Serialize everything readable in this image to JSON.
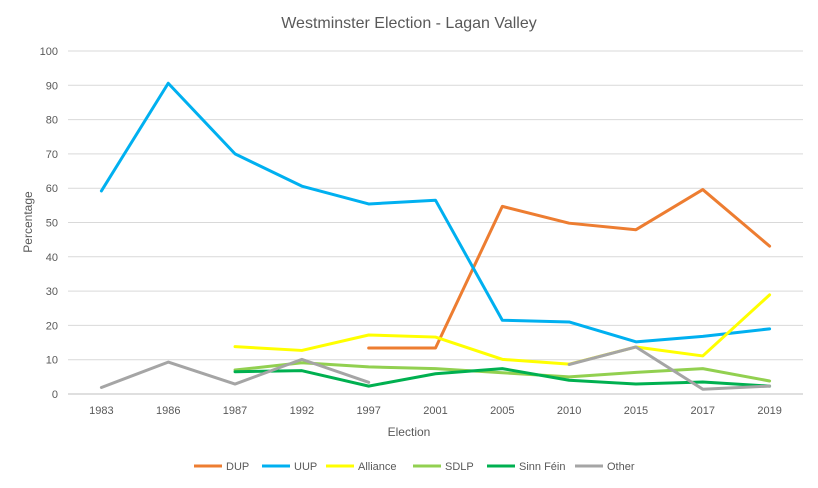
{
  "chart_data": {
    "type": "line",
    "title": "Westminster Election - Lagan Valley",
    "xlabel": "Election",
    "ylabel": "Percentage",
    "ylim": [
      0,
      100
    ],
    "yticks": [
      0,
      10,
      20,
      30,
      40,
      50,
      60,
      70,
      80,
      90,
      100
    ],
    "grid": true,
    "legend": "bottom",
    "categories": [
      "1983",
      "1986",
      "1987",
      "1992",
      "1997",
      "2001",
      "2005",
      "2010",
      "2015",
      "2017",
      "2019"
    ],
    "series": [
      {
        "name": "DUP",
        "color": "#ED7D31",
        "values": [
          null,
          null,
          null,
          null,
          13.4,
          13.4,
          54.7,
          49.8,
          47.9,
          59.6,
          43.1
        ]
      },
      {
        "name": "UUP",
        "color": "#00B0F0",
        "values": [
          59.2,
          90.6,
          70.0,
          60.6,
          55.4,
          56.5,
          21.5,
          21.0,
          15.2,
          16.8,
          19.0
        ]
      },
      {
        "name": "Alliance",
        "color": "#FFFF00",
        "values": [
          null,
          null,
          13.8,
          12.7,
          17.2,
          16.6,
          10.1,
          8.7,
          13.7,
          11.1,
          28.9
        ]
      },
      {
        "name": "SDLP",
        "color": "#92D050",
        "values": [
          null,
          null,
          7.0,
          9.1,
          7.9,
          7.4,
          6.2,
          5.0,
          6.3,
          7.4,
          3.8
        ]
      },
      {
        "name": "Sinn Féin",
        "color": "#00B050",
        "values": [
          null,
          null,
          6.5,
          6.8,
          2.3,
          5.9,
          7.4,
          4.0,
          2.9,
          3.5,
          2.3
        ]
      },
      {
        "name": "Other",
        "color": "#A5A5A5",
        "values": [
          1.9,
          9.3,
          2.9,
          10.1,
          3.4,
          null,
          null,
          8.6,
          13.7,
          1.4,
          2.3
        ]
      }
    ]
  }
}
